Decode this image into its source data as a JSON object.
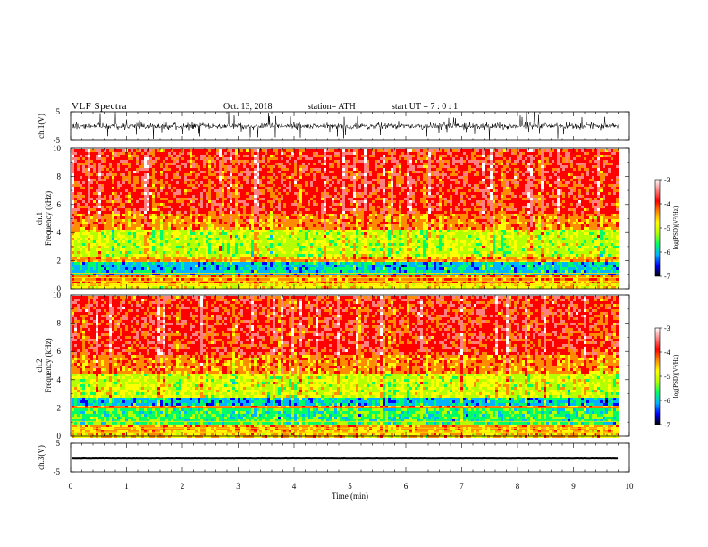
{
  "header": {
    "title": "VLF Spectra",
    "date": "Oct. 13, 2018",
    "station": "station= ATH",
    "start": "start UT =  7 : 0 : 1"
  },
  "colors": {
    "spectrum": [
      "#000000",
      "#0000ff",
      "#00b4ff",
      "#00ff64",
      "#b4ff00",
      "#ffff00",
      "#ff8c00",
      "#ff0000",
      "#ff8080",
      "#ffffff"
    ],
    "trace": "#000000"
  },
  "chart_data": [
    {
      "type": "line",
      "panel": "ch1-waveform",
      "ylabel": "ch.1(V)",
      "ylim": [
        -5,
        5
      ],
      "yticks": [
        "5",
        "-5"
      ],
      "xlim": [
        0,
        10
      ],
      "data_xmax": 9.8,
      "note": "dense noisy waveform, amplitude roughly -1.5..1.5 V centered near 0"
    },
    {
      "type": "heatmap",
      "panel": "ch1-spectrogram",
      "ylabel": "ch.1\nFrequency (kHz)",
      "ylim": [
        0,
        10
      ],
      "yticks": [
        "0",
        "2",
        "4",
        "6",
        "8",
        "10"
      ],
      "xlim": [
        0,
        10
      ],
      "colorbar": {
        "label": "log(PSD)(V²/Hz)",
        "range": [
          -7,
          -3
        ],
        "ticks": [
          "-3",
          "-4",
          "-5",
          "-6",
          "-7"
        ]
      },
      "bands_khz": [
        {
          "from": 0.0,
          "to": 0.5,
          "level": -4.8
        },
        {
          "from": 0.5,
          "to": 1.0,
          "level": -4.3
        },
        {
          "from": 1.0,
          "to": 2.0,
          "level": -6.0
        },
        {
          "from": 2.0,
          "to": 2.3,
          "level": -4.5
        },
        {
          "from": 2.3,
          "to": 4.3,
          "level": -5.1
        },
        {
          "from": 4.3,
          "to": 5.5,
          "level": -4.3
        },
        {
          "from": 5.5,
          "to": 10.0,
          "level": -3.9
        }
      ]
    },
    {
      "type": "heatmap",
      "panel": "ch2-spectrogram",
      "ylabel": "ch.2\nFrequency (kHz)",
      "ylim": [
        0,
        10
      ],
      "yticks": [
        "0",
        "2",
        "4",
        "6",
        "8",
        "10"
      ],
      "xlim": [
        0,
        10
      ],
      "colorbar": {
        "label": "log(PSD)(V²/Hz)",
        "range": [
          -7,
          -3
        ],
        "ticks": [
          "-3",
          "-4",
          "-5",
          "-6",
          "-7"
        ]
      },
      "bands_khz": [
        {
          "from": 0.0,
          "to": 0.5,
          "level": -4.6
        },
        {
          "from": 0.5,
          "to": 1.0,
          "level": -4.4
        },
        {
          "from": 1.0,
          "to": 2.0,
          "level": -5.6
        },
        {
          "from": 2.0,
          "to": 2.3,
          "level": -4.4
        },
        {
          "from": 2.3,
          "to": 2.8,
          "level": -6.0
        },
        {
          "from": 2.8,
          "to": 4.5,
          "level": -5.0
        },
        {
          "from": 4.5,
          "to": 5.8,
          "level": -4.3
        },
        {
          "from": 5.8,
          "to": 10.0,
          "level": -3.9
        }
      ]
    },
    {
      "type": "line",
      "panel": "ch3-waveform",
      "ylabel": "ch.3(V)",
      "ylim": [
        -5,
        5
      ],
      "yticks": [
        "5",
        "-5"
      ],
      "xlim": [
        0,
        10
      ],
      "data_xmax": 9.8,
      "note": "flat line near 0 V with tiny jitter"
    }
  ],
  "xaxis": {
    "label": "Time (min)",
    "ticks": [
      "0",
      "1",
      "2",
      "3",
      "4",
      "5",
      "6",
      "7",
      "8",
      "9",
      "10"
    ]
  }
}
